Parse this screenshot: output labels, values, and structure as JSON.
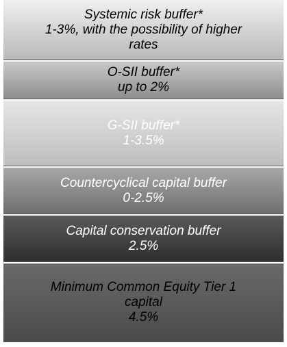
{
  "layers": [
    {
      "lines": [
        "Systemic risk buffer*",
        "1-3%, with the possibility of higher",
        "rates"
      ]
    },
    {
      "lines": [
        "O-SII buffer*",
        "up to 2%"
      ]
    },
    {
      "lines": [
        "G-SII buffer*",
        "1-3.5%"
      ]
    },
    {
      "lines": [
        "Countercyclical capital buffer",
        "0-2.5%"
      ]
    },
    {
      "lines": [
        "Capital conservation buffer",
        "2.5%"
      ]
    },
    {
      "lines": [
        "Minimum Common Equity Tier 1",
        "capital",
        "4.5%"
      ]
    }
  ]
}
